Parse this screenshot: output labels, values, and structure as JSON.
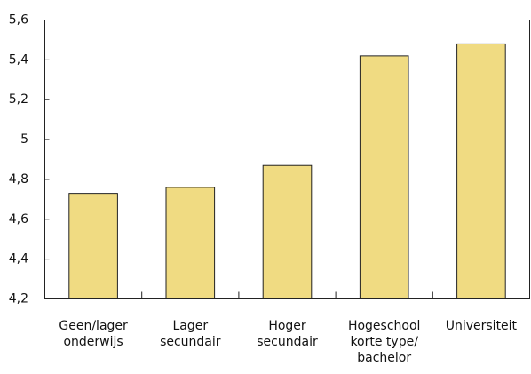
{
  "chart_data": {
    "type": "bar",
    "categories": [
      [
        "Geen/lager",
        "onderwijs"
      ],
      [
        "Lager",
        "secundair"
      ],
      [
        "Hoger",
        "secundair"
      ],
      [
        "Hogeschool",
        "korte type/",
        "bachelor"
      ],
      [
        "Universiteit"
      ]
    ],
    "values": [
      4.73,
      4.76,
      4.87,
      5.42,
      5.48
    ],
    "color": "#f0db82",
    "ylim": [
      4.2,
      5.6
    ],
    "yticks": [
      {
        "value": 4.2,
        "label": "4,2"
      },
      {
        "value": 4.4,
        "label": "4,4"
      },
      {
        "value": 4.6,
        "label": "4,6"
      },
      {
        "value": 4.8,
        "label": "4,8"
      },
      5,
      {
        "value": 5.2,
        "label": "5,2"
      },
      {
        "value": 5.4,
        "label": "5,4"
      },
      {
        "value": 5.6,
        "label": "5,6"
      }
    ],
    "grid": false
  }
}
